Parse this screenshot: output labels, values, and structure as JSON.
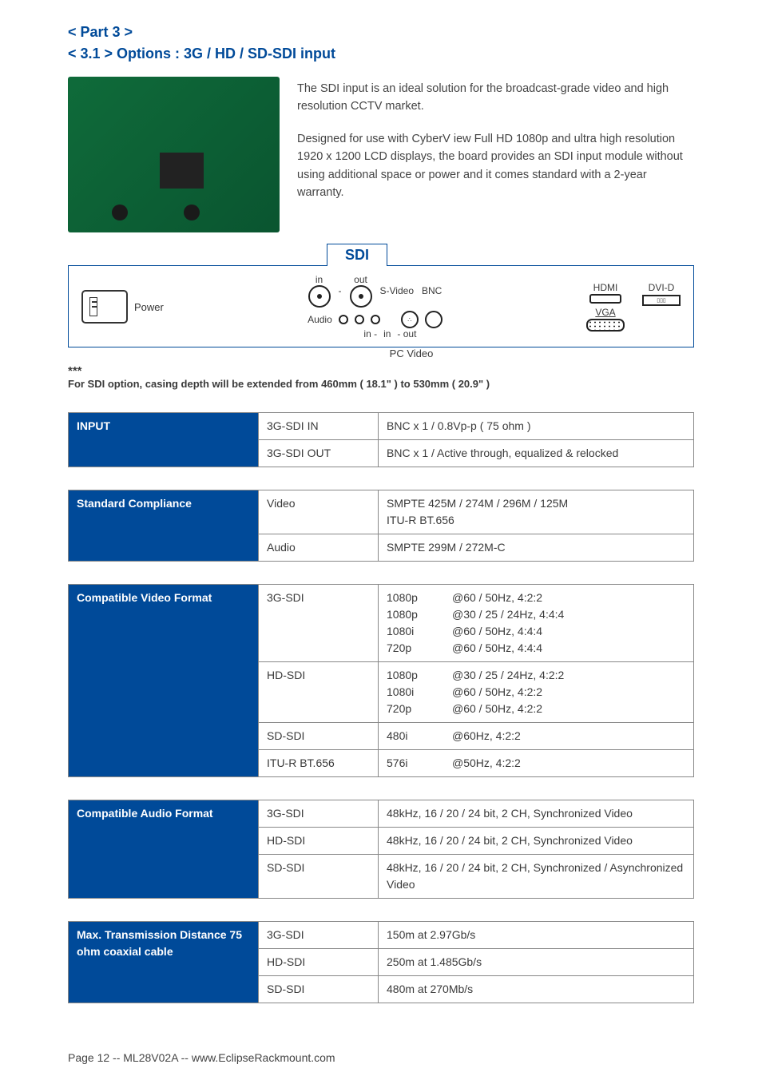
{
  "heading": {
    "part": "< Part 3 >",
    "section": "< 3.1 > Options : 3G / HD / SD-SDI input"
  },
  "intro": {
    "p1": "The SDI input is an ideal solution for the broadcast-grade video and high resolution CCTV market.",
    "p2": "Designed for use with CyberV iew Full HD 1080p and ultra high resolution 1920 x 1200 LCD displays, the board provides an SDI input module without using additional space or power and it comes standard with a 2-year warranty."
  },
  "sdi_tab": "SDI",
  "panel": {
    "power": "Power",
    "in": "in",
    "out": "out",
    "dash": "-",
    "svideo": "S-Video",
    "bnc": "BNC",
    "audio": "Audio",
    "in2": "in -",
    "in3": "in",
    "out2": "- out",
    "pcvideo": "PC  Video",
    "hdmi": "HDMI",
    "dvid": "DVI-D",
    "vga": "VGA"
  },
  "note": {
    "stars": "***",
    "text": "For SDI option, casing depth will be extended from 460mm ( 18.1\" ) to 530mm ( 20.9\" )"
  },
  "tables": {
    "input": {
      "title": "INPUT",
      "rows": [
        {
          "k": "3G-SDI  IN",
          "v": "BNC x 1 / 0.8Vp-p ( 75 ohm )"
        },
        {
          "k": "3G-SDI  OUT",
          "v": "BNC x 1 / Active through, equalized & relocked"
        }
      ]
    },
    "compliance": {
      "title": "Standard Compliance",
      "rows": [
        {
          "k": "Video",
          "v": "SMPTE 425M / 274M / 296M / 125M\nITU-R  BT.656"
        },
        {
          "k": "Audio",
          "v": "SMPTE 299M / 272M-C"
        }
      ]
    },
    "vformat": {
      "title": "Compatible Video Format",
      "rows": [
        {
          "k": "3G-SDI",
          "fmts": [
            {
              "r": "1080p",
              "d": "@60 / 50Hz, 4:2:2"
            },
            {
              "r": "1080p",
              "d": "@30 / 25 / 24Hz, 4:4:4"
            },
            {
              "r": "1080i",
              "d": "@60 / 50Hz, 4:4:4"
            },
            {
              "r": "720p",
              "d": "@60 / 50Hz, 4:4:4"
            }
          ]
        },
        {
          "k": "HD-SDI",
          "fmts": [
            {
              "r": "1080p",
              "d": "@30 / 25 / 24Hz, 4:2:2"
            },
            {
              "r": "1080i",
              "d": "@60 / 50Hz, 4:2:2"
            },
            {
              "r": "720p",
              "d": "@60 / 50Hz, 4:2:2"
            }
          ]
        },
        {
          "k": "SD-SDI",
          "fmts": [
            {
              "r": "480i",
              "d": "@60Hz, 4:2:2"
            }
          ]
        },
        {
          "k": "ITU-R  BT.656",
          "fmts": [
            {
              "r": "576i",
              "d": "@50Hz, 4:2:2"
            }
          ]
        }
      ]
    },
    "aformat": {
      "title": "Compatible Audio Format",
      "rows": [
        {
          "k": "3G-SDI",
          "v": "48kHz, 16 / 20 / 24 bit, 2 CH, Synchronized Video"
        },
        {
          "k": "HD-SDI",
          "v": "48kHz, 16 / 20 / 24 bit, 2 CH, Synchronized Video"
        },
        {
          "k": "SD-SDI",
          "v": "48kHz, 16 / 20 / 24 bit, 2 CH, Synchronized / Asynchronized Video"
        }
      ]
    },
    "distance": {
      "title": "Max. Transmission Distance 75 ohm coaxial cable",
      "rows": [
        {
          "k": "3G-SDI",
          "v": "150m at 2.97Gb/s"
        },
        {
          "k": "HD-SDI",
          "v": "250m at 1.485Gb/s"
        },
        {
          "k": "SD-SDI",
          "v": "480m at 270Mb/s"
        }
      ]
    }
  },
  "footer": "Page 12 -- ML28V02A -- www.EclipseRackmount.com"
}
